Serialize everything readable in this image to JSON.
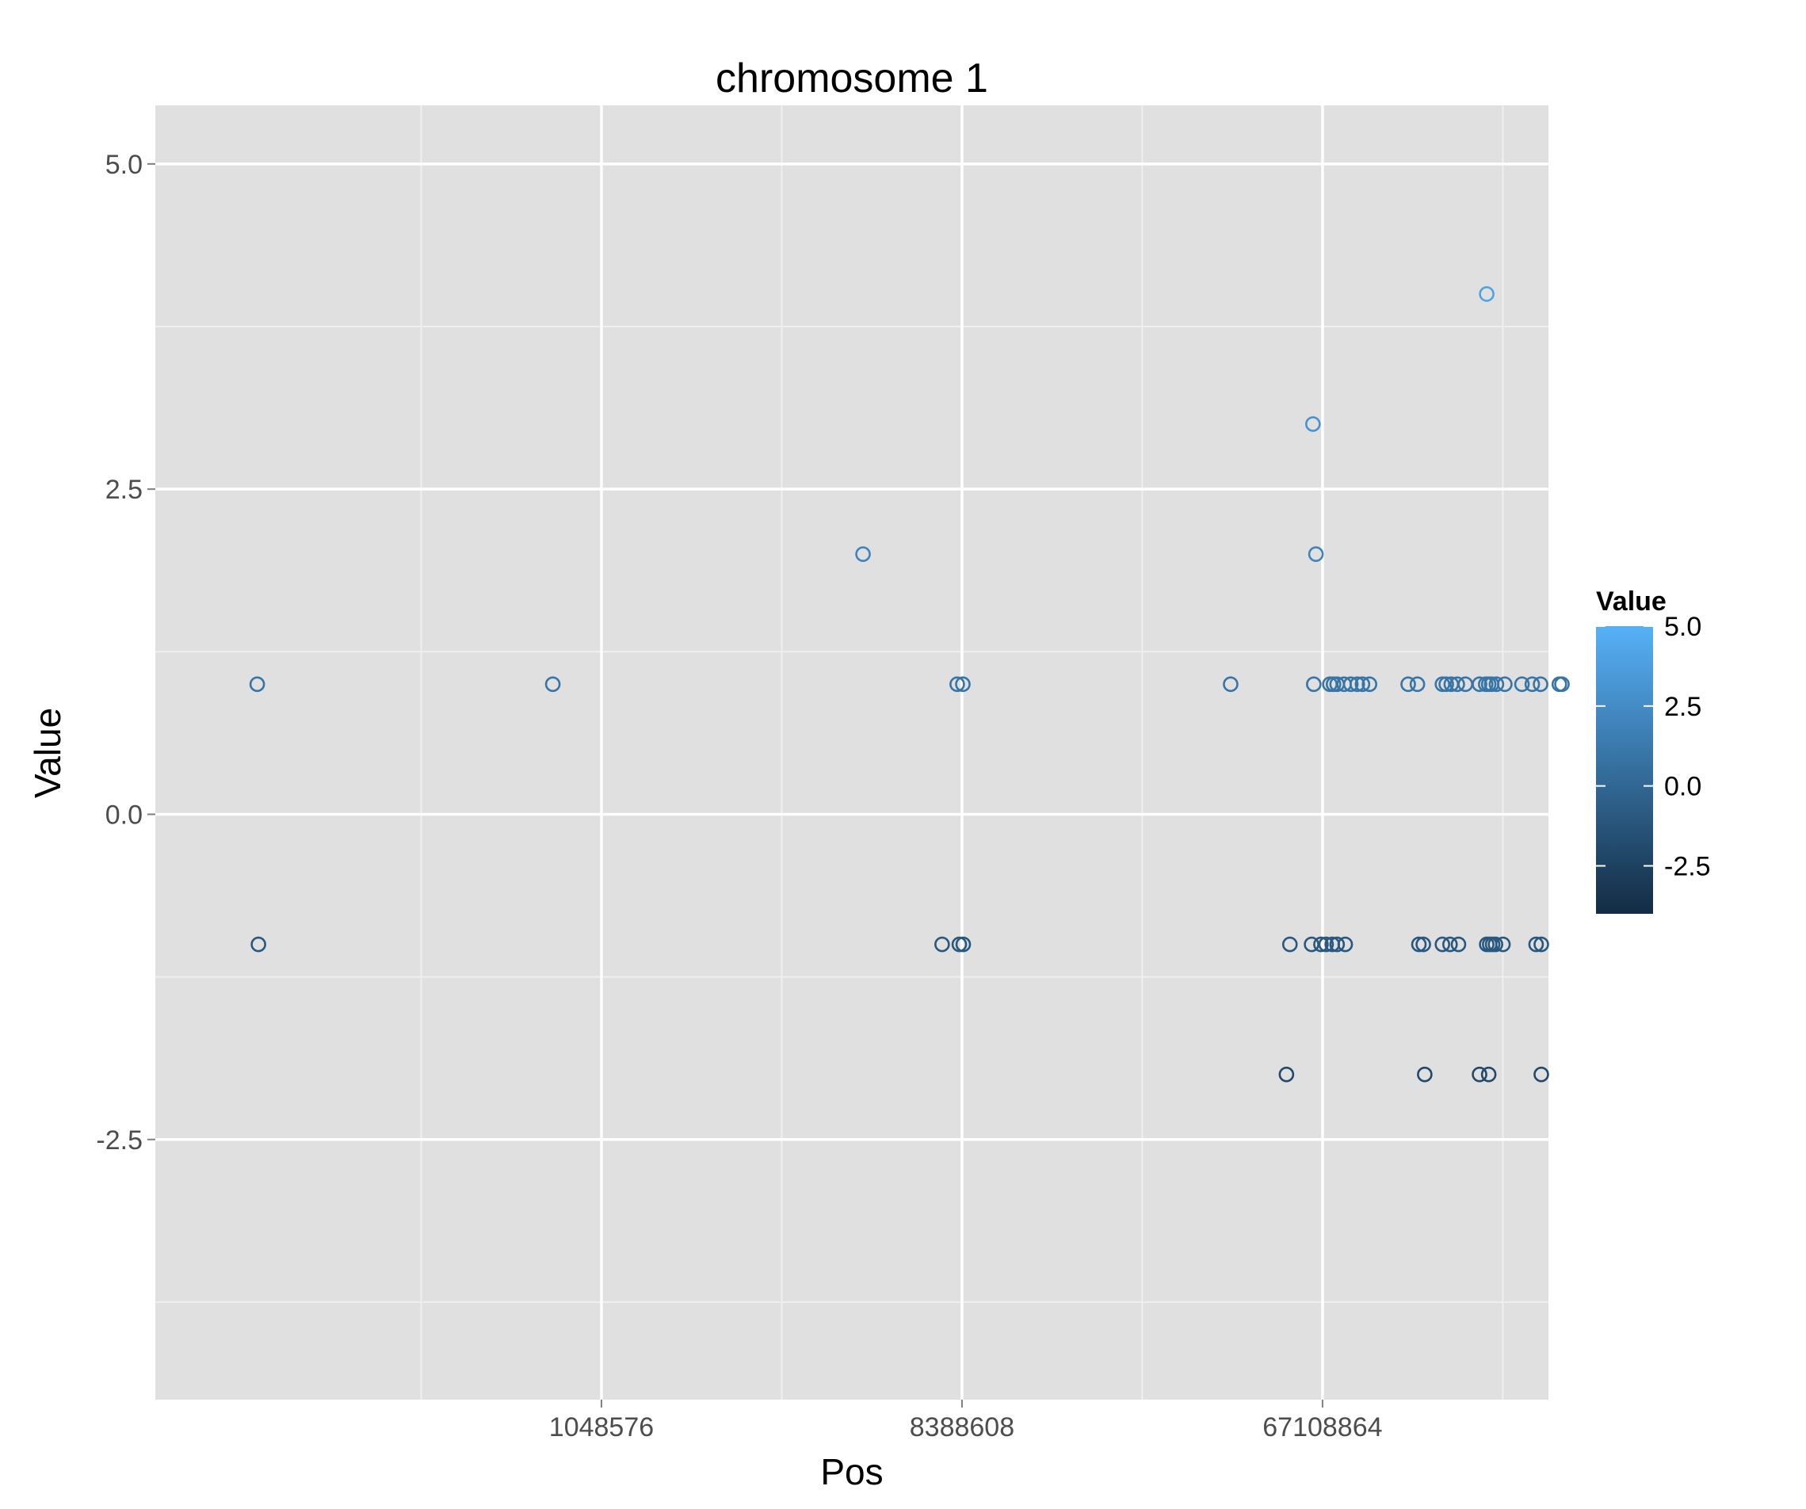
{
  "chart_data": {
    "type": "scatter",
    "title": "chromosome 1",
    "xlabel": "Pos",
    "ylabel": "Value",
    "x_scale": "log2",
    "x_ticks": [
      {
        "value": 1048576,
        "label": "1048576"
      },
      {
        "value": 8388608,
        "label": "8388608"
      },
      {
        "value": 67108864,
        "label": "67108864"
      }
    ],
    "y_ticks": [
      {
        "value": -2.5,
        "label": "-2.5"
      },
      {
        "value": 0.0,
        "label": "0.0"
      },
      {
        "value": 2.5,
        "label": "2.5"
      },
      {
        "value": 5.0,
        "label": "5.0"
      }
    ],
    "ylim": [
      -4.5,
      5.45
    ],
    "xlim": [
      80000,
      247000000
    ],
    "grid": true,
    "panel_background": "#e0e0e0",
    "legend": {
      "title": "Value",
      "position": "right",
      "type": "colorbar",
      "range": [
        -4,
        5
      ],
      "low_color": "#132b43",
      "high_color": "#56b1f7",
      "breaks": [
        {
          "value": 5.0,
          "label": "5.0"
        },
        {
          "value": 2.5,
          "label": "2.5"
        },
        {
          "value": 0.0,
          "label": "0.0"
        },
        {
          "value": -2.5,
          "label": "-2.5"
        }
      ]
    },
    "points": [
      {
        "x": 144000,
        "y": 1
      },
      {
        "x": 145000,
        "y": -1
      },
      {
        "x": 792000,
        "y": 1
      },
      {
        "x": 4740000,
        "y": 2
      },
      {
        "x": 7480000,
        "y": -1
      },
      {
        "x": 8160000,
        "y": 1
      },
      {
        "x": 8260000,
        "y": -1
      },
      {
        "x": 8430000,
        "y": 1
      },
      {
        "x": 8450000,
        "y": -1
      },
      {
        "x": 39500000,
        "y": 1
      },
      {
        "x": 54500000,
        "y": -2
      },
      {
        "x": 55600000,
        "y": -1
      },
      {
        "x": 63500000,
        "y": 3
      },
      {
        "x": 64600000,
        "y": 2
      },
      {
        "x": 63800000,
        "y": 1
      },
      {
        "x": 63000000,
        "y": -1
      },
      {
        "x": 66500000,
        "y": -1
      },
      {
        "x": 68500000,
        "y": -1
      },
      {
        "x": 71000000,
        "y": -1
      },
      {
        "x": 73000000,
        "y": -1
      },
      {
        "x": 76500000,
        "y": -1
      },
      {
        "x": 70000000,
        "y": 1
      },
      {
        "x": 71500000,
        "y": 1
      },
      {
        "x": 73000000,
        "y": 1
      },
      {
        "x": 76000000,
        "y": 1
      },
      {
        "x": 79000000,
        "y": 1
      },
      {
        "x": 82000000,
        "y": 1
      },
      {
        "x": 84500000,
        "y": 1
      },
      {
        "x": 88000000,
        "y": 1
      },
      {
        "x": 121000000,
        "y": -2
      },
      {
        "x": 110000000,
        "y": 1
      },
      {
        "x": 116000000,
        "y": 1
      },
      {
        "x": 134000000,
        "y": 1
      },
      {
        "x": 137000000,
        "y": 1
      },
      {
        "x": 141000000,
        "y": 1
      },
      {
        "x": 146000000,
        "y": 1
      },
      {
        "x": 153000000,
        "y": 1
      },
      {
        "x": 117000000,
        "y": -1
      },
      {
        "x": 120000000,
        "y": -1
      },
      {
        "x": 134000000,
        "y": -1
      },
      {
        "x": 140000000,
        "y": -1
      },
      {
        "x": 147000000,
        "y": -1
      },
      {
        "x": 166000000,
        "y": -2
      },
      {
        "x": 175000000,
        "y": -2
      },
      {
        "x": 173000000,
        "y": 4
      },
      {
        "x": 166000000,
        "y": 1
      },
      {
        "x": 172000000,
        "y": 1
      },
      {
        "x": 175000000,
        "y": 1
      },
      {
        "x": 178000000,
        "y": 1
      },
      {
        "x": 183000000,
        "y": 1
      },
      {
        "x": 192000000,
        "y": 1
      },
      {
        "x": 173000000,
        "y": -1
      },
      {
        "x": 176000000,
        "y": -1
      },
      {
        "x": 179000000,
        "y": -1
      },
      {
        "x": 182000000,
        "y": -1
      },
      {
        "x": 190000000,
        "y": -1
      },
      {
        "x": 237000000,
        "y": -2
      },
      {
        "x": 212000000,
        "y": 1
      },
      {
        "x": 225000000,
        "y": 1
      },
      {
        "x": 236000000,
        "y": 1
      },
      {
        "x": 230000000,
        "y": -1
      },
      {
        "x": 237000000,
        "y": -1
      },
      {
        "x": 263000000,
        "y": 1
      },
      {
        "x": 267000000,
        "y": 1
      }
    ]
  }
}
